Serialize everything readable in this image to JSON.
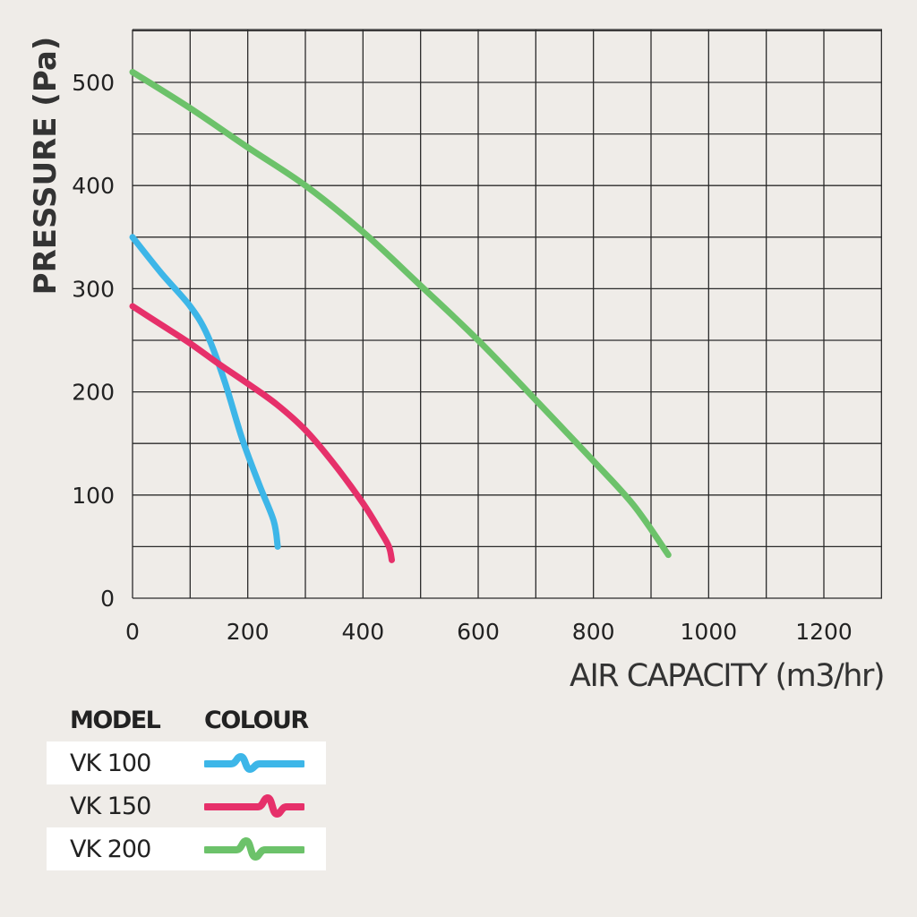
{
  "chart_data": {
    "type": "line",
    "xlabel": "AIR CAPACITY (m3/hr)",
    "ylabel": "PRESSURE (Pa)",
    "xlim": [
      0,
      1300
    ],
    "ylim": [
      0,
      550
    ],
    "x_ticks": [
      "0",
      "200",
      "400",
      "600",
      "800",
      "1000",
      "1200"
    ],
    "y_ticks": [
      "0",
      "100",
      "200",
      "300",
      "400",
      "500"
    ],
    "grid": true,
    "series": [
      {
        "name": "VK 100",
        "color": "#3db6e8",
        "points": [
          [
            0,
            350
          ],
          [
            50,
            315
          ],
          [
            100,
            283
          ],
          [
            130,
            255
          ],
          [
            160,
            210
          ],
          [
            190,
            155
          ],
          [
            220,
            110
          ],
          [
            245,
            75
          ],
          [
            252,
            50
          ]
        ]
      },
      {
        "name": "VK 150",
        "color": "#e6306a",
        "points": [
          [
            0,
            283
          ],
          [
            50,
            265
          ],
          [
            100,
            247
          ],
          [
            150,
            227
          ],
          [
            200,
            208
          ],
          [
            250,
            188
          ],
          [
            300,
            163
          ],
          [
            350,
            130
          ],
          [
            400,
            92
          ],
          [
            430,
            65
          ],
          [
            445,
            50
          ],
          [
            450,
            37
          ]
        ]
      },
      {
        "name": "VK 200",
        "color": "#6cc26a",
        "points": [
          [
            0,
            510
          ],
          [
            100,
            475
          ],
          [
            200,
            437
          ],
          [
            300,
            400
          ],
          [
            400,
            355
          ],
          [
            500,
            303
          ],
          [
            600,
            250
          ],
          [
            700,
            192
          ],
          [
            800,
            133
          ],
          [
            870,
            90
          ],
          [
            930,
            42
          ]
        ]
      }
    ]
  },
  "legend": {
    "header_model": "MODEL",
    "header_colour": "COLOUR",
    "rows": [
      {
        "model": "VK 100",
        "color": "#3db6e8"
      },
      {
        "model": "VK 150",
        "color": "#e6306a"
      },
      {
        "model": "VK 200",
        "color": "#6cc26a"
      }
    ]
  }
}
